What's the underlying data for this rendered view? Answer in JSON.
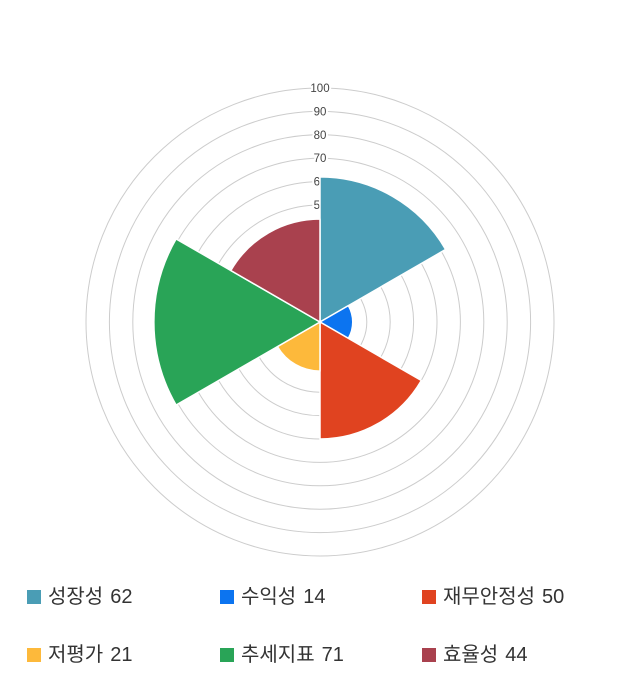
{
  "page": {
    "background": "#ffffff"
  },
  "chart_data": {
    "type": "polar_area",
    "categories": [
      "성장성",
      "수익성",
      "재무안정성",
      "저평가",
      "추세지표",
      "효율성"
    ],
    "values": [
      62,
      14,
      50,
      21,
      71,
      44
    ],
    "colors": [
      "#4A9DB5",
      "#0C74F0",
      "#E04320",
      "#FDB93B",
      "#29A457",
      "#A9414E"
    ],
    "axis": {
      "min": 0,
      "max": 100,
      "grid_step": 10,
      "tick_labels": [
        50,
        60,
        70,
        80,
        90,
        100
      ],
      "grid_color": "#cccccc",
      "tick_color": "#444444"
    },
    "start_angle_deg": 0,
    "direction": "clockwise",
    "sector_width_deg": 60,
    "grid": "on",
    "legend_position": "bottom",
    "title": ""
  },
  "legend": {
    "items": [
      {
        "name": "성장성",
        "value": 62,
        "color": "#4A9DB5"
      },
      {
        "name": "수익성",
        "value": 14,
        "color": "#0C74F0"
      },
      {
        "name": "재무안정성",
        "value": 50,
        "color": "#E04320"
      },
      {
        "name": "저평가",
        "value": 21,
        "color": "#FDB93B"
      },
      {
        "name": "추세지표",
        "value": 71,
        "color": "#29A457"
      },
      {
        "name": "효율성",
        "value": 44,
        "color": "#A9414E"
      }
    ]
  }
}
